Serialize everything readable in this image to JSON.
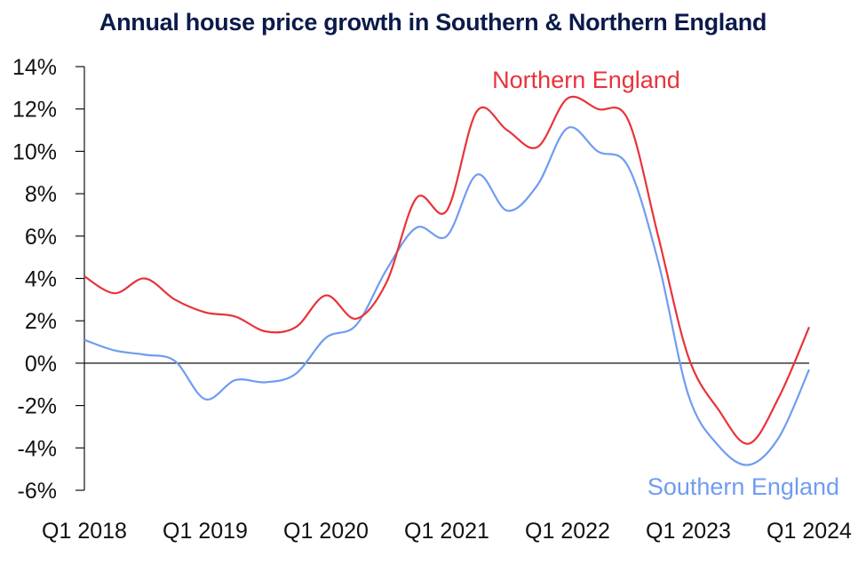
{
  "chart_data": {
    "type": "line",
    "title": "Annual house price growth in Southern & Northern England",
    "xlabel": "",
    "ylabel": "",
    "ylim": [
      -6,
      14
    ],
    "yticks": [
      14,
      12,
      10,
      8,
      6,
      4,
      2,
      0,
      -2,
      -4,
      -6
    ],
    "ytick_labels": [
      "14%",
      "12%",
      "10%",
      "8%",
      "6%",
      "4%",
      "2%",
      "0%",
      "-2%",
      "-4%",
      "-6%"
    ],
    "xtick_labels": [
      "Q1 2018",
      "Q1 2019",
      "Q1 2020",
      "Q1 2021",
      "Q1 2022",
      "Q1 2023",
      "Q1 2024"
    ],
    "x": [
      "Q1 2018",
      "Q2 2018",
      "Q3 2018",
      "Q4 2018",
      "Q1 2019",
      "Q2 2019",
      "Q3 2019",
      "Q4 2019",
      "Q1 2020",
      "Q2 2020",
      "Q3 2020",
      "Q4 2020",
      "Q1 2021",
      "Q2 2021",
      "Q3 2021",
      "Q4 2021",
      "Q1 2022",
      "Q2 2022",
      "Q3 2022",
      "Q4 2022",
      "Q1 2023",
      "Q2 2023",
      "Q3 2023",
      "Q4 2023",
      "Q1 2024"
    ],
    "grid": false,
    "legend": "inline-labels",
    "series": [
      {
        "name": "Northern England",
        "color": "#e8333a",
        "values": [
          4.1,
          3.3,
          4.0,
          3.0,
          2.4,
          2.2,
          1.5,
          1.7,
          3.2,
          2.1,
          3.8,
          7.8,
          7.2,
          11.9,
          11.0,
          10.2,
          12.5,
          12.0,
          11.5,
          6.0,
          0.3,
          -2.2,
          -3.8,
          -1.6,
          1.7
        ]
      },
      {
        "name": "Southern England",
        "color": "#6f9cf2",
        "values": [
          1.1,
          0.6,
          0.4,
          0.1,
          -1.7,
          -0.8,
          -0.9,
          -0.5,
          1.2,
          1.8,
          4.4,
          6.4,
          6.0,
          8.9,
          7.2,
          8.4,
          11.1,
          10.0,
          9.3,
          4.8,
          -1.5,
          -3.9,
          -4.8,
          -3.5,
          -0.3
        ]
      }
    ],
    "annotations": [
      {
        "text": "Northern England",
        "series": "Northern England",
        "position": "above-peak"
      },
      {
        "text": "Southern England",
        "series": "Southern England",
        "position": "bottom-right"
      }
    ]
  }
}
